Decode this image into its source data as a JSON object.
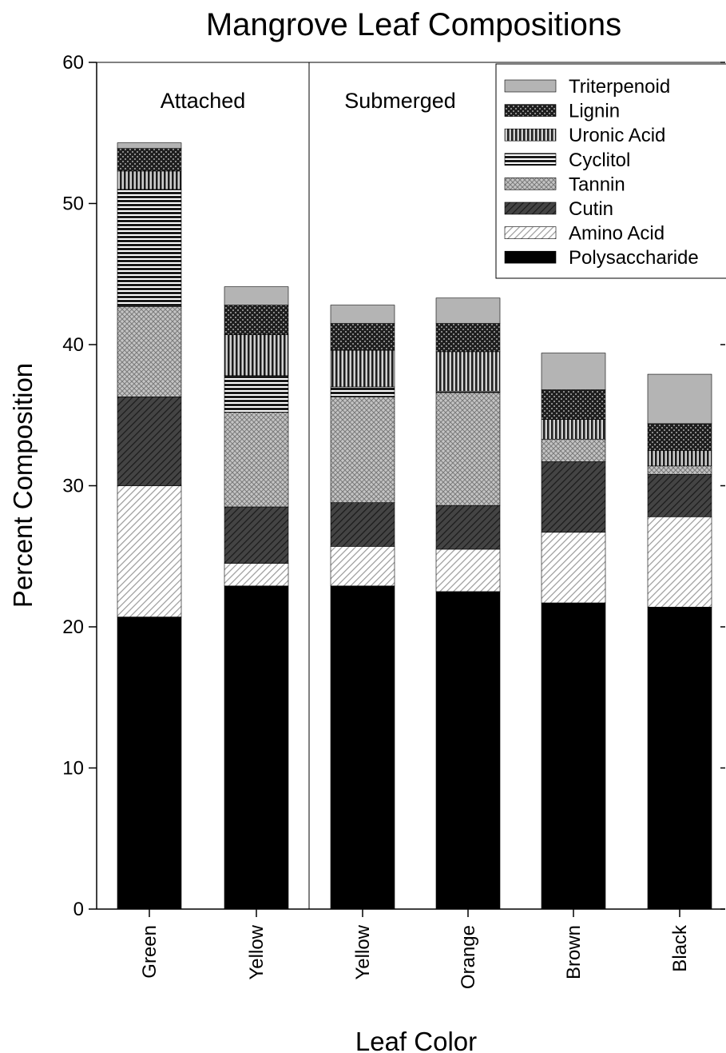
{
  "chart_data": {
    "type": "bar",
    "stacked": true,
    "title": "Mangrove Leaf Compositions",
    "xlabel": "Leaf Color",
    "ylabel": "Percent Composition",
    "ylim": [
      0,
      60
    ],
    "yticks": [
      0,
      10,
      20,
      30,
      40,
      50,
      60
    ],
    "categories": [
      "Green",
      "Yellow",
      "Yellow",
      "Orange",
      "Brown",
      "Black"
    ],
    "groups": [
      {
        "label": "Attached",
        "categories": [
          0,
          1
        ]
      },
      {
        "label": "Submerged",
        "categories": [
          2,
          3,
          4,
          5
        ]
      }
    ],
    "legend_position": "top-right",
    "series": [
      {
        "name": "Polysaccharide",
        "color": "#000000",
        "pattern": "solid",
        "values": [
          20.7,
          22.9,
          22.9,
          22.5,
          21.7,
          21.4
        ]
      },
      {
        "name": "Amino Acid",
        "color": "#bdbdbd",
        "pattern": "diagonal-light",
        "values": [
          9.3,
          1.6,
          2.8,
          3.0,
          5.0,
          6.4
        ]
      },
      {
        "name": "Cutin",
        "color": "#3c3c3c",
        "pattern": "diagonal-dark",
        "values": [
          6.3,
          4.0,
          3.1,
          3.1,
          5.0,
          3.0
        ]
      },
      {
        "name": "Tannin",
        "color": "#a8a8a8",
        "pattern": "crosshatch",
        "values": [
          6.4,
          6.7,
          7.5,
          8.0,
          1.6,
          0.6
        ]
      },
      {
        "name": "Cyclitol",
        "color": "#555555",
        "pattern": "horizontal",
        "values": [
          8.3,
          2.6,
          0.7,
          0.1,
          0.0,
          0.0
        ]
      },
      {
        "name": "Uronic Acid",
        "color": "#6e6e6e",
        "pattern": "vertical",
        "values": [
          1.3,
          2.9,
          2.6,
          2.8,
          1.4,
          1.1
        ]
      },
      {
        "name": "Lignin",
        "color": "#2a2a2a",
        "pattern": "checker",
        "values": [
          1.6,
          2.1,
          1.9,
          2.0,
          2.1,
          1.9
        ]
      },
      {
        "name": "Triterpenoid",
        "color": "#b4b4b4",
        "pattern": "solid",
        "values": [
          0.4,
          1.3,
          1.3,
          1.8,
          2.6,
          3.5
        ]
      }
    ]
  }
}
